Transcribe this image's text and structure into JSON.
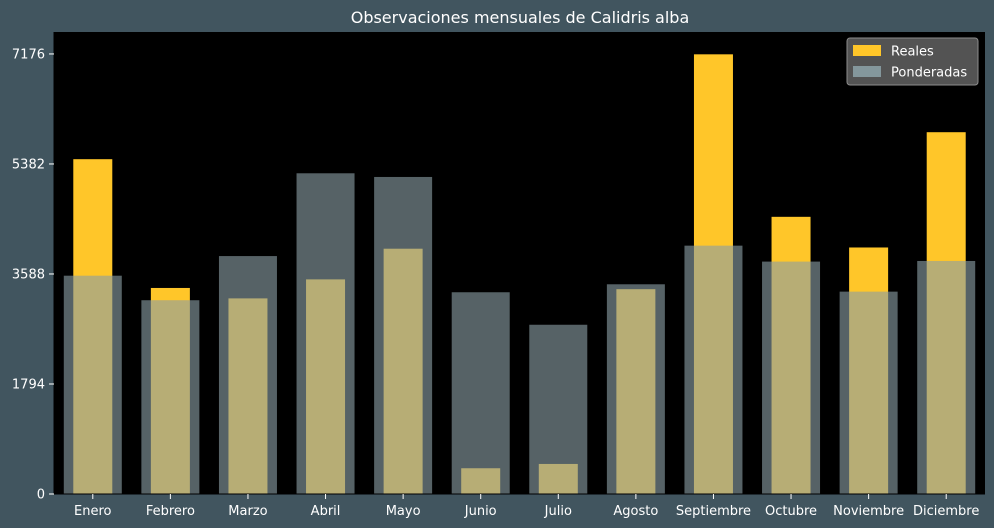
{
  "chart_data": {
    "type": "bar",
    "title": "Observaciones mensuales de Calidris alba",
    "xlabel": "",
    "ylabel": "",
    "categories": [
      "Enero",
      "Febrero",
      "Marzo",
      "Abril",
      "Mayo",
      "Junio",
      "Julio",
      "Agosto",
      "Septiembre",
      "Octubre",
      "Noviembre",
      "Diciembre"
    ],
    "series": [
      {
        "name": "Reales",
        "color": "#ffc629",
        "values": [
          5460,
          3360,
          3190,
          3500,
          4000,
          420,
          490,
          3340,
          7170,
          4520,
          4020,
          5900
        ]
      },
      {
        "name": "Ponderadas",
        "color": "#8a9ea4",
        "values": [
          3560,
          3160,
          3880,
          5230,
          5170,
          3290,
          2760,
          3420,
          4050,
          3790,
          3300,
          3800
        ]
      }
    ],
    "yticks": [
      0,
      1794,
      3588,
      5382,
      7176
    ],
    "ytick_labels": [
      "0",
      "1794",
      "3588",
      "5382",
      "7176"
    ],
    "ylim": [
      0,
      7534
    ],
    "grid": false,
    "legend": "top-right",
    "background": "#000000",
    "figure_background": "#41555f"
  }
}
